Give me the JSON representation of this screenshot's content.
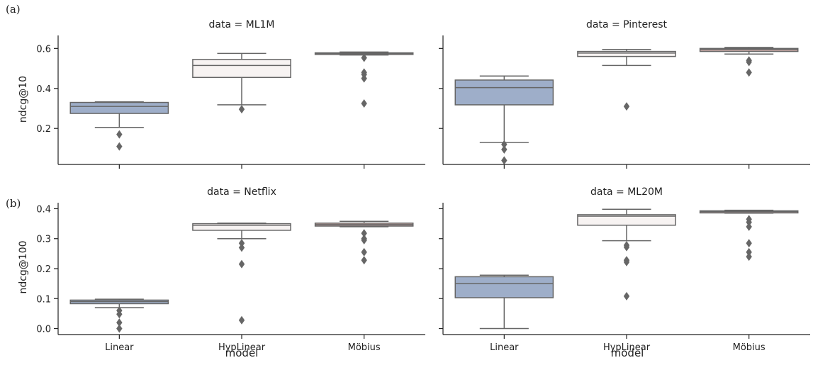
{
  "figure": {
    "tag_a": "(a)",
    "tag_b": "(b)",
    "xlabel": "model",
    "rows": [
      {
        "ylabel": "ndcg@10",
        "yticks": [
          0.2,
          0.4,
          0.6
        ],
        "ylim": [
          0.02,
          0.665
        ]
      },
      {
        "ylabel": "ndcg@100",
        "yticks": [
          0.0,
          0.1,
          0.2,
          0.3,
          0.4
        ],
        "ylim": [
          -0.02,
          0.42
        ]
      }
    ]
  },
  "chart_data": [
    {
      "type": "box",
      "title": "data = ML1M",
      "xlabel": "",
      "ylabel": "ndcg@10",
      "ylim": [
        0.02,
        0.665
      ],
      "yticks": [
        0.2,
        0.4,
        0.6
      ],
      "categories": [
        "Linear",
        "HypLinear",
        "Möbius"
      ],
      "colors": [
        "#9eaec9",
        "#f7f3f2",
        "#c9a9a6"
      ],
      "boxes": [
        {
          "q1": 0.275,
          "median": 0.31,
          "q3": 0.33,
          "whisker_low": 0.205,
          "whisker_high": 0.333,
          "outliers": [
            0.17,
            0.11
          ]
        },
        {
          "q1": 0.455,
          "median": 0.515,
          "q3": 0.545,
          "whisker_low": 0.318,
          "whisker_high": 0.575,
          "outliers": [
            0.296
          ]
        },
        {
          "q1": 0.57,
          "median": 0.575,
          "q3": 0.578,
          "whisker_low": 0.567,
          "whisker_high": 0.582,
          "outliers": [
            0.553,
            0.48,
            0.47,
            0.45,
            0.325
          ]
        }
      ]
    },
    {
      "type": "box",
      "title": "data = Pinterest",
      "xlabel": "",
      "ylabel": "",
      "ylim": [
        0.02,
        0.665
      ],
      "yticks": [
        0.2,
        0.4,
        0.6
      ],
      "categories": [
        "Linear",
        "HypLinear",
        "Möbius"
      ],
      "colors": [
        "#9eaec9",
        "#f7f3f2",
        "#c9a9a6"
      ],
      "boxes": [
        {
          "q1": 0.318,
          "median": 0.404,
          "q3": 0.442,
          "whisker_low": 0.13,
          "whisker_high": 0.462,
          "outliers": [
            0.12,
            0.095,
            0.04
          ]
        },
        {
          "q1": 0.56,
          "median": 0.577,
          "q3": 0.585,
          "whisker_low": 0.515,
          "whisker_high": 0.595,
          "outliers": [
            0.31
          ]
        },
        {
          "q1": 0.585,
          "median": 0.595,
          "q3": 0.6,
          "whisker_low": 0.572,
          "whisker_high": 0.605,
          "outliers": [
            0.54,
            0.532,
            0.48
          ]
        }
      ]
    },
    {
      "type": "box",
      "title": "data = Netflix",
      "xlabel": "model",
      "ylabel": "ndcg@100",
      "ylim": [
        -0.02,
        0.42
      ],
      "yticks": [
        0.0,
        0.1,
        0.2,
        0.3,
        0.4
      ],
      "categories": [
        "Linear",
        "HypLinear",
        "Möbius"
      ],
      "colors": [
        "#9eaec9",
        "#f7f3f2",
        "#c9a9a6"
      ],
      "boxes": [
        {
          "q1": 0.083,
          "median": 0.09,
          "q3": 0.095,
          "whisker_low": 0.07,
          "whisker_high": 0.098,
          "outliers": [
            0.06,
            0.048,
            0.02,
            0.0
          ]
        },
        {
          "q1": 0.328,
          "median": 0.345,
          "q3": 0.35,
          "whisker_low": 0.3,
          "whisker_high": 0.352,
          "outliers": [
            0.285,
            0.27,
            0.215,
            0.028
          ]
        },
        {
          "q1": 0.342,
          "median": 0.347,
          "q3": 0.352,
          "whisker_low": 0.34,
          "whisker_high": 0.358,
          "outliers": [
            0.318,
            0.3,
            0.295,
            0.255,
            0.228
          ]
        }
      ]
    },
    {
      "type": "box",
      "title": "data = ML20M",
      "xlabel": "model",
      "ylabel": "",
      "ylim": [
        -0.02,
        0.42
      ],
      "yticks": [
        0.0,
        0.1,
        0.2,
        0.3,
        0.4
      ],
      "categories": [
        "Linear",
        "HypLinear",
        "Möbius"
      ],
      "colors": [
        "#9eaec9",
        "#f7f3f2",
        "#c9a9a6"
      ],
      "boxes": [
        {
          "q1": 0.103,
          "median": 0.15,
          "q3": 0.173,
          "whisker_low": 0.0,
          "whisker_high": 0.178,
          "outliers": []
        },
        {
          "q1": 0.345,
          "median": 0.375,
          "q3": 0.38,
          "whisker_low": 0.293,
          "whisker_high": 0.398,
          "outliers": [
            0.278,
            0.272,
            0.228,
            0.222,
            0.108
          ]
        },
        {
          "q1": 0.386,
          "median": 0.39,
          "q3": 0.393,
          "whisker_low": 0.385,
          "whisker_high": 0.395,
          "outliers": [
            0.365,
            0.355,
            0.34,
            0.285,
            0.255,
            0.24
          ]
        }
      ]
    }
  ]
}
